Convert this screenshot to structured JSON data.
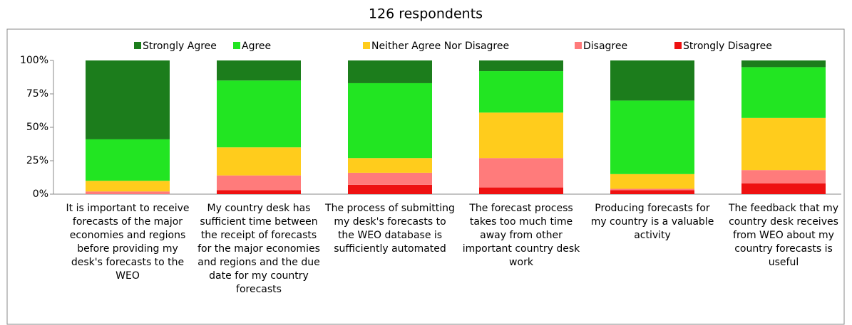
{
  "chart_data": {
    "type": "stacked_bar",
    "title": "126 respondents",
    "categories": [
      "It is important to receive forecasts of the major economies and regions before providing my desk's forecasts to the WEO",
      "My country desk has sufficient time between the receipt of forecasts for the major economies and regions and the due date for my country forecasts",
      "The process of submitting my desk's forecasts to the WEO database is sufficiently automated",
      "The forecast process takes too much time away from other important country desk work",
      "Producing forecasts for my country is a valuable activity",
      "The feedback that my country desk receives from WEO about my country forecasts is useful"
    ],
    "series": [
      {
        "name": "Strongly Disagree",
        "color": "#ee1111",
        "values": [
          0,
          3,
          7,
          5,
          3,
          8
        ]
      },
      {
        "name": "Disagree",
        "color": "#ff7b7b",
        "values": [
          2,
          11,
          9,
          22,
          1,
          10
        ]
      },
      {
        "name": "Neither Agree Nor Disagree",
        "color": "#ffcc1c",
        "values": [
          8,
          21,
          11,
          34,
          11,
          39
        ]
      },
      {
        "name": "Agree",
        "color": "#22e522",
        "values": [
          31,
          50,
          56,
          31,
          55,
          38
        ]
      },
      {
        "name": "Strongly Agree",
        "color": "#1c7d1c",
        "values": [
          59,
          15,
          17,
          8,
          30,
          5
        ]
      }
    ],
    "ylim": [
      0,
      100
    ],
    "yticks": [
      {
        "value": 0,
        "label": "0%"
      },
      {
        "value": 25,
        "label": "25%"
      },
      {
        "value": 50,
        "label": "50%"
      },
      {
        "value": 75,
        "label": "75%"
      },
      {
        "value": 100,
        "label": "100%"
      }
    ],
    "legend": "top"
  }
}
